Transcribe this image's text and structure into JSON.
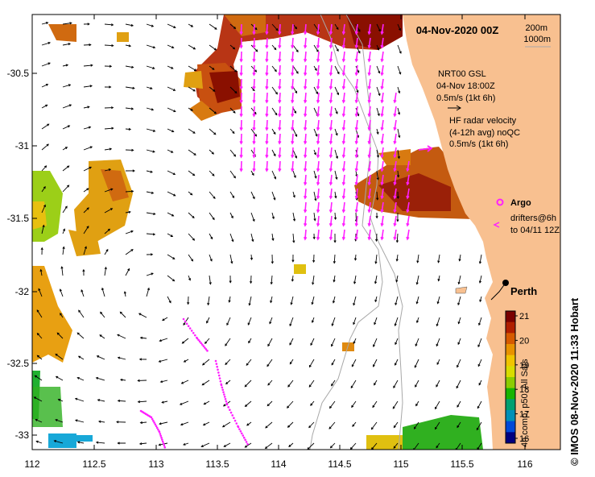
{
  "title": "04-Nov-2020 00Z",
  "isobath_legend": [
    "200m",
    "1000m"
  ],
  "nrt_legend": [
    "NRT00 GSL",
    "04-Nov 18:00Z",
    "0.5m/s (1kt 6h)"
  ],
  "hf_legend": [
    "HF radar velocity",
    "(4-12h avg) noQC",
    "0.5m/s (1kt 6h)"
  ],
  "argo_label": "Argo",
  "drifter_label": [
    "drifters@6h",
    "to 04/11 12Z"
  ],
  "city": "Perth",
  "colorbar": {
    "label": "4h comp, p50, All Sats",
    "ticks": [
      "21",
      "20",
      "19",
      "18",
      "17",
      "16"
    ],
    "colors": [
      "#7a0000",
      "#b01e00",
      "#d65a00",
      "#e89200",
      "#f0c400",
      "#d8dc00",
      "#8ccc00",
      "#18b400",
      "#00a070",
      "#0090b8",
      "#0048d8",
      "#000080"
    ]
  },
  "credit": "© IMOS 08-Nov-2020 11:33 Hobart",
  "colors": {
    "land": "#f8c090",
    "hf_vector": "#ff20ff",
    "frame": "#000000",
    "isobath": "#a0a0a0"
  },
  "axes": {
    "x_ticks": [
      "112",
      "112.5",
      "113",
      "113.5",
      "114",
      "114.5",
      "115",
      "115.5",
      "116"
    ],
    "y_ticks": [
      "-30.5",
      "-31",
      "-31.5",
      "-32",
      "-32.5",
      "-33"
    ]
  }
}
